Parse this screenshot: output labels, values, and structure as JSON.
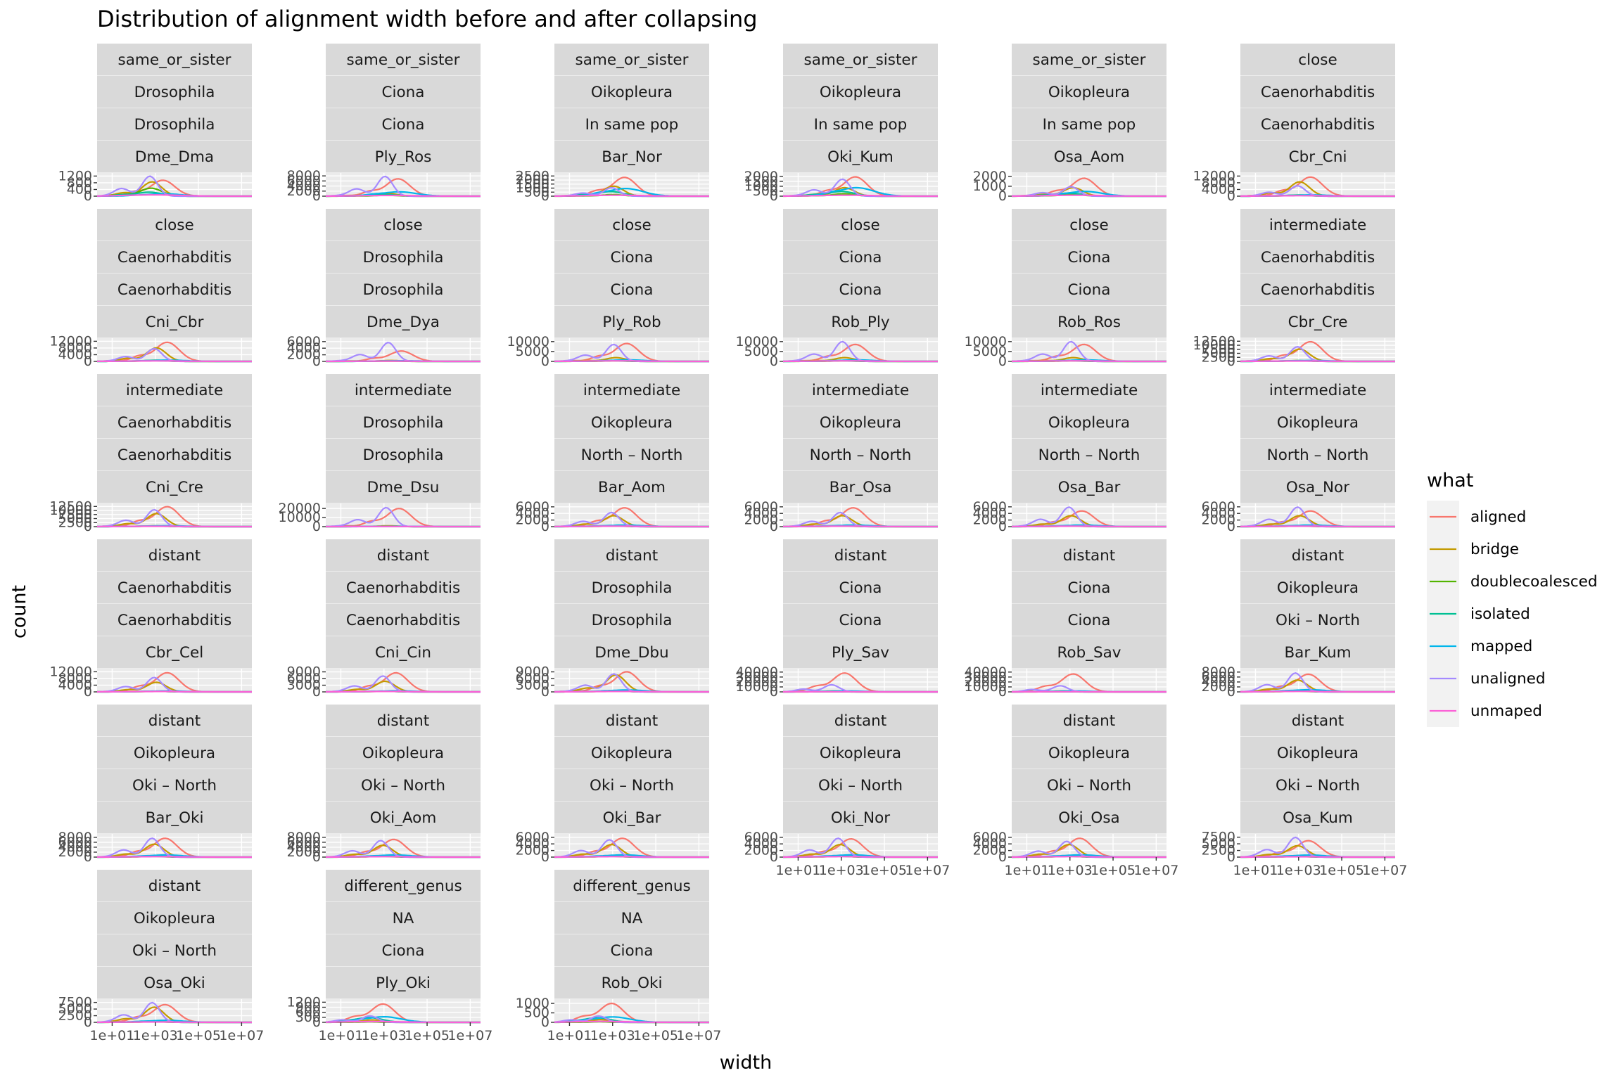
{
  "chart_data": {
    "type": "line",
    "title": "Distribution of alignment width before and after collapsing",
    "xlabel": "width",
    "ylabel": "count",
    "x_scale": "log10",
    "x_tick_labels": [
      "1e+01",
      "1e+03",
      "1e+05",
      "1e+07"
    ],
    "x_ticks": [
      10,
      1000,
      100000,
      10000000
    ],
    "legend": {
      "title": "what",
      "position": "right",
      "entries": [
        {
          "label": "aligned",
          "color": "#F8766D"
        },
        {
          "label": "bridge",
          "color": "#C49A00"
        },
        {
          "label": "doublecoalesced",
          "color": "#53B400"
        },
        {
          "label": "isolated",
          "color": "#00C094"
        },
        {
          "label": "mapped",
          "color": "#00B6EB"
        },
        {
          "label": "unaligned",
          "color": "#A58AFF"
        },
        {
          "label": "unmaped",
          "color": "#FB61D7"
        }
      ]
    },
    "panels": [
      {
        "strips": [
          "same_or_sister",
          "Drosophila",
          "Drosophila",
          "Dme_Dma"
        ],
        "yticks": [
          0,
          400,
          800,
          1200
        ],
        "ymax": 1300,
        "peaks": {
          "aligned": 1000,
          "bridge": 900,
          "doublecoalesced": 500,
          "isolated": 250,
          "mapped": 150,
          "unaligned": 1250,
          "unmaped": 80
        },
        "shift": -0.2,
        "x_axis": false
      },
      {
        "strips": [
          "same_or_sister",
          "Ciona",
          "Ciona",
          "Ply_Ros"
        ],
        "yticks": [
          0,
          2000,
          4000,
          6000,
          8000
        ],
        "ymax": 8600,
        "peaks": {
          "aligned": 7200,
          "bridge": 1200,
          "doublecoalesced": 400,
          "isolated": 700,
          "mapped": 1800,
          "unaligned": 8200,
          "unmaped": 300
        },
        "shift": 0.1,
        "x_axis": false
      },
      {
        "strips": [
          "same_or_sister",
          "Oikopleura",
          "In same pop",
          "Bar_Nor"
        ],
        "yticks": [
          0,
          500,
          1000,
          1500,
          2000,
          2500
        ],
        "ymax": 2700,
        "peaks": {
          "aligned": 2450,
          "bridge": 1300,
          "doublecoalesced": 200,
          "isolated": 600,
          "mapped": 1000,
          "unaligned": 1100,
          "unmaped": 120
        },
        "shift": 0.0,
        "x_axis": false
      },
      {
        "strips": [
          "same_or_sister",
          "Oikopleura",
          "In same pop",
          "Oki_Kum"
        ],
        "yticks": [
          0,
          500,
          1000,
          1500,
          2000
        ],
        "ymax": 2200,
        "peaks": {
          "aligned": 2050,
          "bridge": 900,
          "doublecoalesced": 250,
          "isolated": 500,
          "mapped": 900,
          "unaligned": 1800,
          "unmaped": 100
        },
        "shift": 0.1,
        "x_axis": false
      },
      {
        "strips": [
          "same_or_sister",
          "Oikopleura",
          "In same pop",
          "Osa_Aom"
        ],
        "yticks": [
          0,
          1000,
          2000
        ],
        "ymax": 2200,
        "peaks": {
          "aligned": 1900,
          "bridge": 900,
          "doublecoalesced": 200,
          "isolated": 300,
          "mapped": 500,
          "unaligned": 1000,
          "unmaped": 100
        },
        "shift": 0.1,
        "x_axis": false
      },
      {
        "strips": [
          "close",
          "Caenorhabditis",
          "Caenorhabditis",
          "Cbr_Cni"
        ],
        "yticks": [
          0,
          4000,
          8000,
          12000
        ],
        "ymax": 13000,
        "peaks": {
          "aligned": 12000,
          "bridge": 9000,
          "doublecoalesced": 700,
          "isolated": 500,
          "mapped": 800,
          "unaligned": 6500,
          "unmaped": 300
        },
        "shift": 0.0,
        "x_axis": false
      },
      {
        "strips": [
          "close",
          "Caenorhabditis",
          "Caenorhabditis",
          "Cni_Cbr"
        ],
        "yticks": [
          0,
          4000,
          8000,
          12000
        ],
        "ymax": 13000,
        "peaks": {
          "aligned": 12000,
          "bridge": 8500,
          "doublecoalesced": 700,
          "isolated": 500,
          "mapped": 800,
          "unaligned": 8000,
          "unmaped": 300
        },
        "shift": 0.0,
        "x_axis": false
      },
      {
        "strips": [
          "close",
          "Drosophila",
          "Drosophila",
          "Dme_Dya"
        ],
        "yticks": [
          0,
          2000,
          4000,
          6000
        ],
        "ymax": 6600,
        "peaks": {
          "aligned": 3300,
          "bridge": 300,
          "doublecoalesced": 100,
          "isolated": 150,
          "mapped": 200,
          "unaligned": 6000,
          "unmaped": 100
        },
        "shift": 0.25,
        "x_axis": false
      },
      {
        "strips": [
          "close",
          "Ciona",
          "Ciona",
          "Ply_Rob"
        ],
        "yticks": [
          0,
          5000,
          10000
        ],
        "ymax": 11000,
        "peaks": {
          "aligned": 9500,
          "bridge": 2000,
          "doublecoalesced": 300,
          "isolated": 400,
          "mapped": 800,
          "unaligned": 9000,
          "unmaped": 300
        },
        "shift": 0.1,
        "x_axis": false
      },
      {
        "strips": [
          "close",
          "Ciona",
          "Ciona",
          "Rob_Ply"
        ],
        "yticks": [
          0,
          5000,
          10000
        ],
        "ymax": 11000,
        "peaks": {
          "aligned": 9000,
          "bridge": 2000,
          "doublecoalesced": 300,
          "isolated": 400,
          "mapped": 800,
          "unaligned": 10500,
          "unmaped": 300
        },
        "shift": 0.1,
        "x_axis": false
      },
      {
        "strips": [
          "close",
          "Ciona",
          "Ciona",
          "Rob_Ros"
        ],
        "yticks": [
          0,
          5000,
          10000
        ],
        "ymax": 11000,
        "peaks": {
          "aligned": 9000,
          "bridge": 2000,
          "doublecoalesced": 300,
          "isolated": 400,
          "mapped": 800,
          "unaligned": 10500,
          "unmaped": 300
        },
        "shift": 0.1,
        "x_axis": false
      },
      {
        "strips": [
          "intermediate",
          "Caenorhabditis",
          "Caenorhabditis",
          "Cbr_Cre"
        ],
        "yticks": [
          0,
          2500,
          5000,
          7500,
          10000,
          12500
        ],
        "ymax": 13500,
        "peaks": {
          "aligned": 12800,
          "bridge": 8000,
          "doublecoalesced": 500,
          "isolated": 400,
          "mapped": 600,
          "unaligned": 9500,
          "unmaped": 250
        },
        "shift": 0.0,
        "x_axis": false
      },
      {
        "strips": [
          "intermediate",
          "Caenorhabditis",
          "Caenorhabditis",
          "Cni_Cre"
        ],
        "yticks": [
          0,
          2500,
          5000,
          7500,
          10000,
          12500
        ],
        "ymax": 13500,
        "peaks": {
          "aligned": 13000,
          "bridge": 8500,
          "doublecoalesced": 500,
          "isolated": 400,
          "mapped": 600,
          "unaligned": 11000,
          "unmaped": 250
        },
        "shift": 0.0,
        "x_axis": false
      },
      {
        "strips": [
          "intermediate",
          "Drosophila",
          "Drosophila",
          "Dme_Dsu"
        ],
        "yticks": [
          0,
          10000,
          20000
        ],
        "ymax": 24000,
        "peaks": {
          "aligned": 21000,
          "bridge": 1000,
          "doublecoalesced": 300,
          "isolated": 300,
          "mapped": 400,
          "unaligned": 22000,
          "unmaped": 200
        },
        "shift": 0.15,
        "x_axis": false
      },
      {
        "strips": [
          "intermediate",
          "Oikopleura",
          "North – North",
          "Bar_Aom"
        ],
        "yticks": [
          0,
          2000,
          4000,
          6000
        ],
        "ymax": 6600,
        "peaks": {
          "aligned": 6000,
          "bridge": 3500,
          "doublecoalesced": 200,
          "isolated": 300,
          "mapped": 500,
          "unaligned": 4500,
          "unmaped": 150
        },
        "shift": 0.0,
        "x_axis": false
      },
      {
        "strips": [
          "intermediate",
          "Oikopleura",
          "North – North",
          "Bar_Osa"
        ],
        "yticks": [
          0,
          2000,
          4000,
          6000
        ],
        "ymax": 6600,
        "peaks": {
          "aligned": 6000,
          "bridge": 3500,
          "doublecoalesced": 200,
          "isolated": 300,
          "mapped": 500,
          "unaligned": 4500,
          "unmaped": 150
        },
        "shift": 0.0,
        "x_axis": false
      },
      {
        "strips": [
          "intermediate",
          "Oikopleura",
          "North – North",
          "Osa_Bar"
        ],
        "yticks": [
          0,
          2000,
          4000,
          6000
        ],
        "ymax": 6600,
        "peaks": {
          "aligned": 5000,
          "bridge": 3500,
          "doublecoalesced": 200,
          "isolated": 300,
          "mapped": 500,
          "unaligned": 6200,
          "unmaped": 150
        },
        "shift": 0.0,
        "x_axis": false
      },
      {
        "strips": [
          "intermediate",
          "Oikopleura",
          "North – North",
          "Osa_Nor"
        ],
        "yticks": [
          0,
          2000,
          4000,
          6000
        ],
        "ymax": 6600,
        "peaks": {
          "aligned": 5000,
          "bridge": 3500,
          "doublecoalesced": 200,
          "isolated": 300,
          "mapped": 500,
          "unaligned": 6200,
          "unmaped": 150
        },
        "shift": 0.0,
        "x_axis": false
      },
      {
        "strips": [
          "distant",
          "Caenorhabditis",
          "Caenorhabditis",
          "Cbr_Cel"
        ],
        "yticks": [
          0,
          4000,
          8000,
          12000
        ],
        "ymax": 13000,
        "peaks": {
          "aligned": 12000,
          "bridge": 6000,
          "doublecoalesced": 400,
          "isolated": 400,
          "mapped": 600,
          "unaligned": 9000,
          "unmaped": 250
        },
        "shift": 0.0,
        "x_axis": false
      },
      {
        "strips": [
          "distant",
          "Caenorhabditis",
          "Caenorhabditis",
          "Cni_Cin"
        ],
        "yticks": [
          0,
          3000,
          6000,
          9000
        ],
        "ymax": 9800,
        "peaks": {
          "aligned": 9000,
          "bridge": 5000,
          "doublecoalesced": 300,
          "isolated": 300,
          "mapped": 500,
          "unaligned": 7500,
          "unmaped": 200
        },
        "shift": 0.0,
        "x_axis": false
      },
      {
        "strips": [
          "distant",
          "Drosophila",
          "Drosophila",
          "Dme_Dbu"
        ],
        "yticks": [
          0,
          3000,
          6000,
          9000
        ],
        "ymax": 9800,
        "peaks": {
          "aligned": 9500,
          "bridge": 8000,
          "doublecoalesced": 600,
          "isolated": 500,
          "mapped": 900,
          "unaligned": 8500,
          "unmaped": 200
        },
        "shift": 0.1,
        "x_axis": false
      },
      {
        "strips": [
          "distant",
          "Ciona",
          "Ciona",
          "Ply_Sav"
        ],
        "yticks": [
          0,
          10000,
          20000,
          30000,
          40000
        ],
        "ymax": 44000,
        "peaks": {
          "aligned": 40000,
          "bridge": 2000,
          "doublecoalesced": 300,
          "isolated": 400,
          "mapped": 2000,
          "unaligned": 15000,
          "unmaped": 300
        },
        "shift": -0.4,
        "x_axis": false
      },
      {
        "strips": [
          "distant",
          "Ciona",
          "Ciona",
          "Rob_Sav"
        ],
        "yticks": [
          0,
          10000,
          20000,
          30000,
          40000
        ],
        "ymax": 44000,
        "peaks": {
          "aligned": 38000,
          "bridge": 2000,
          "doublecoalesced": 300,
          "isolated": 400,
          "mapped": 2000,
          "unaligned": 13000,
          "unmaped": 300
        },
        "shift": -0.4,
        "x_axis": false
      },
      {
        "strips": [
          "distant",
          "Oikopleura",
          "Oki – North",
          "Bar_Kum"
        ],
        "yticks": [
          0,
          2000,
          4000,
          6000,
          8000
        ],
        "ymax": 8800,
        "peaks": {
          "aligned": 7500,
          "bridge": 5000,
          "doublecoalesced": 300,
          "isolated": 400,
          "mapped": 900,
          "unaligned": 8000,
          "unmaped": 200
        },
        "shift": -0.1,
        "x_axis": false
      },
      {
        "strips": [
          "distant",
          "Oikopleura",
          "Oki – North",
          "Bar_Oki"
        ],
        "yticks": [
          0,
          2000,
          4000,
          6000,
          8000
        ],
        "ymax": 8800,
        "peaks": {
          "aligned": 8000,
          "bridge": 5500,
          "doublecoalesced": 300,
          "isolated": 400,
          "mapped": 900,
          "unaligned": 8000,
          "unmaped": 200
        },
        "shift": -0.1,
        "x_axis": false
      },
      {
        "strips": [
          "distant",
          "Oikopleura",
          "Oki – North",
          "Oki_Aom"
        ],
        "yticks": [
          0,
          2000,
          4000,
          6000,
          8000
        ],
        "ymax": 8800,
        "peaks": {
          "aligned": 7500,
          "bridge": 5000,
          "doublecoalesced": 300,
          "isolated": 400,
          "mapped": 900,
          "unaligned": 7000,
          "unmaped": 200
        },
        "shift": -0.1,
        "x_axis": false
      },
      {
        "strips": [
          "distant",
          "Oikopleura",
          "Oki – North",
          "Oki_Bar"
        ],
        "yticks": [
          0,
          2000,
          4000,
          6000
        ],
        "ymax": 6600,
        "peaks": {
          "aligned": 6000,
          "bridge": 4000,
          "doublecoalesced": 250,
          "isolated": 300,
          "mapped": 700,
          "unaligned": 5500,
          "unmaped": 150
        },
        "shift": -0.1,
        "x_axis": false
      },
      {
        "strips": [
          "distant",
          "Oikopleura",
          "Oki – North",
          "Oki_Nor"
        ],
        "yticks": [
          0,
          2000,
          4000,
          6000
        ],
        "ymax": 6600,
        "peaks": {
          "aligned": 5800,
          "bridge": 4000,
          "doublecoalesced": 250,
          "isolated": 300,
          "mapped": 700,
          "unaligned": 6000,
          "unmaped": 150
        },
        "shift": -0.1,
        "x_axis": true
      },
      {
        "strips": [
          "distant",
          "Oikopleura",
          "Oki – North",
          "Oki_Osa"
        ],
        "yticks": [
          0,
          2000,
          4000,
          6000
        ],
        "ymax": 6600,
        "peaks": {
          "aligned": 6000,
          "bridge": 4000,
          "doublecoalesced": 250,
          "isolated": 300,
          "mapped": 700,
          "unaligned": 5000,
          "unmaped": 150
        },
        "shift": -0.1,
        "x_axis": true
      },
      {
        "strips": [
          "distant",
          "Oikopleura",
          "Oki – North",
          "Osa_Kum"
        ],
        "yticks": [
          0,
          2500,
          5000,
          7500
        ],
        "ymax": 8200,
        "peaks": {
          "aligned": 6500,
          "bridge": 4500,
          "doublecoalesced": 250,
          "isolated": 300,
          "mapped": 800,
          "unaligned": 7800,
          "unmaped": 150
        },
        "shift": -0.1,
        "x_axis": true
      },
      {
        "strips": [
          "distant",
          "Oikopleura",
          "Oki – North",
          "Osa_Oki"
        ],
        "yticks": [
          0,
          2500,
          5000,
          7500
        ],
        "ymax": 8200,
        "peaks": {
          "aligned": 7000,
          "bridge": 6000,
          "doublecoalesced": 250,
          "isolated": 300,
          "mapped": 800,
          "unaligned": 7800,
          "unmaped": 150
        },
        "shift": -0.1,
        "x_axis": true
      },
      {
        "strips": [
          "different_genus",
          "NA",
          "Ciona",
          "Ply_Oki"
        ],
        "yticks": [
          0,
          300,
          600,
          900,
          1200
        ],
        "ymax": 1300,
        "peaks": {
          "aligned": 1150,
          "bridge": 150,
          "doublecoalesced": 30,
          "isolated": 300,
          "mapped": 350,
          "unaligned": 400,
          "unmaped": 50
        },
        "shift": -0.6,
        "x_axis": true
      },
      {
        "strips": [
          "different_genus",
          "NA",
          "Ciona",
          "Rob_Oki"
        ],
        "yticks": [
          0,
          500,
          1000
        ],
        "ymax": 1150,
        "peaks": {
          "aligned": 1050,
          "bridge": 150,
          "doublecoalesced": 30,
          "isolated": 250,
          "mapped": 300,
          "unaligned": 350,
          "unmaped": 50
        },
        "shift": -0.6,
        "x_axis": true
      }
    ]
  }
}
